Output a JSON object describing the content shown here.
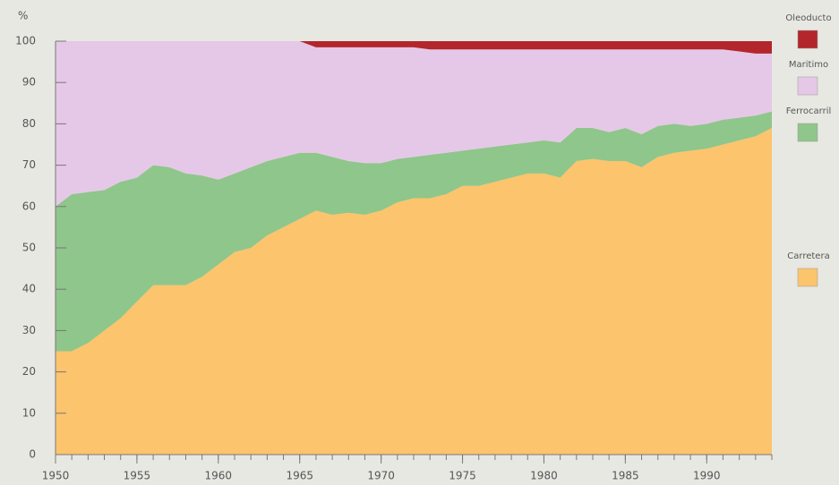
{
  "chart_data": {
    "type": "stacked-area",
    "ylabel": "%",
    "x": [
      1950,
      1951,
      1952,
      1953,
      1954,
      1955,
      1956,
      1957,
      1958,
      1959,
      1960,
      1961,
      1962,
      1963,
      1964,
      1965,
      1966,
      1967,
      1968,
      1969,
      1970,
      1971,
      1972,
      1973,
      1974,
      1975,
      1976,
      1977,
      1978,
      1979,
      1980,
      1981,
      1982,
      1983,
      1984,
      1985,
      1986,
      1987,
      1988,
      1989,
      1990,
      1991,
      1992,
      1993,
      1994
    ],
    "xlim": [
      1950,
      1994
    ],
    "xticks": [
      1950,
      1955,
      1960,
      1965,
      1970,
      1975,
      1980,
      1985,
      1990
    ],
    "ylim": [
      0,
      100
    ],
    "yticks": [
      0,
      10,
      20,
      30,
      40,
      50,
      60,
      70,
      80,
      90,
      100
    ],
    "legend": "right",
    "series": [
      {
        "name": "Carretera",
        "color": "#fcc46c",
        "values": [
          25,
          25,
          27,
          30,
          33,
          37,
          41,
          41,
          41,
          43,
          46,
          49,
          50,
          53,
          55,
          57,
          59,
          58,
          58.5,
          58,
          59,
          61,
          62,
          62,
          63,
          65,
          65,
          66,
          67,
          68,
          68,
          67,
          71,
          71.5,
          71,
          71,
          69.5,
          72,
          73,
          73.5,
          74,
          75,
          76,
          77,
          79
        ]
      },
      {
        "name": "Ferrocarril",
        "color": "#8fc68b",
        "values": [
          35,
          38,
          36.5,
          34,
          33,
          30,
          29,
          28.5,
          27,
          24.5,
          20.5,
          19,
          19.5,
          18,
          17,
          16,
          14,
          14,
          12.5,
          12.5,
          11.5,
          10.5,
          10,
          10.5,
          10,
          8.5,
          9,
          8.5,
          8,
          7.5,
          8,
          8.5,
          8,
          7.5,
          7,
          8,
          8,
          7.5,
          7,
          6,
          6,
          6,
          5.5,
          5,
          4
        ]
      },
      {
        "name": "Maritimo",
        "color": "#e5c8e7",
        "values": [
          40,
          37,
          36.5,
          36,
          34,
          33,
          30,
          30.5,
          32,
          32.5,
          33.5,
          32,
          30.5,
          29,
          28,
          27,
          25.5,
          26.5,
          27.5,
          28,
          28,
          27,
          26.5,
          25.5,
          25,
          24.5,
          24,
          23.5,
          23,
          22.5,
          22,
          22.5,
          19,
          19,
          20,
          19,
          20.5,
          18.5,
          18,
          18.5,
          18,
          17,
          16,
          15,
          14
        ]
      },
      {
        "name": "Oleoducto",
        "color": "#b3262c",
        "values": [
          0,
          0,
          0,
          0,
          0,
          0,
          0,
          0,
          0,
          0,
          0,
          0,
          0,
          0,
          0,
          0,
          1.5,
          1.5,
          1.5,
          1.5,
          1.5,
          1.5,
          1.5,
          2,
          2,
          2,
          2,
          2,
          2,
          2,
          2,
          2,
          2,
          2,
          2,
          2,
          2,
          2,
          2,
          2,
          2,
          2,
          2.5,
          3,
          3
        ]
      }
    ]
  }
}
